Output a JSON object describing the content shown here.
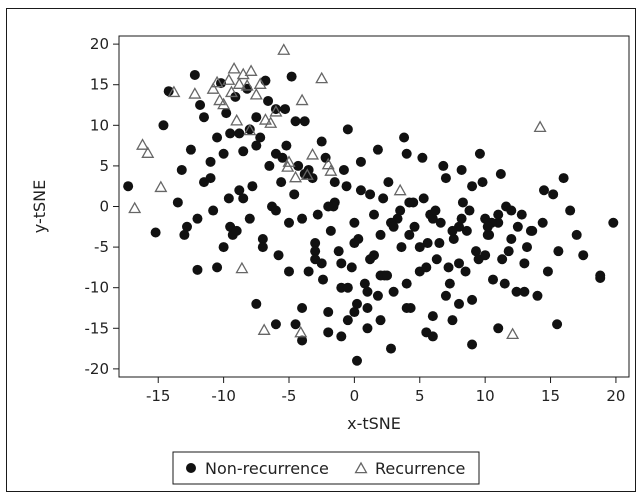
{
  "chart_data": {
    "type": "scatter",
    "title": "",
    "xlabel": "x-tSNE",
    "ylabel": "y-tSNE",
    "xlim": [
      -18,
      21
    ],
    "ylim": [
      -21,
      21
    ],
    "xticks": [
      -15,
      -10,
      -5,
      0,
      5,
      10,
      15,
      20
    ],
    "yticks": [
      -20,
      -15,
      -10,
      -5,
      0,
      5,
      10,
      15,
      20
    ],
    "x_tick_labels": [
      "-15",
      "-10",
      "-5",
      "0",
      "5",
      "10",
      "15",
      "20"
    ],
    "y_tick_labels": [
      "-20",
      "-15",
      "-10",
      "-5",
      "0",
      "5",
      "10",
      "15",
      "20"
    ],
    "grid": false,
    "legend_position": "bottom",
    "series": [
      {
        "name": "Non-recurrence",
        "marker": "filled-circle",
        "color": "#111111",
        "x": [
          -17.3,
          -15.2,
          -14.2,
          -14.6,
          -13.5,
          -13.2,
          -12.8,
          -12.5,
          -12.2,
          -12.0,
          -11.8,
          -11.5,
          -11.0,
          -10.8,
          -10.5,
          -10.2,
          -10.0,
          -9.8,
          -9.6,
          -9.3,
          -9.1,
          -8.8,
          -8.5,
          -8.2,
          -8.0,
          -7.8,
          -7.5,
          -7.2,
          -7.0,
          -6.8,
          -6.6,
          -6.3,
          -6.0,
          -5.8,
          -5.6,
          -5.3,
          -5.0,
          -4.8,
          -4.6,
          -4.3,
          -4.0,
          -3.8,
          -3.5,
          -3.2,
          -3.0,
          -2.8,
          -2.5,
          -2.2,
          -2.0,
          -1.8,
          -1.5,
          -1.2,
          -1.0,
          -0.8,
          -0.5,
          -0.2,
          0.0,
          0.2,
          0.5,
          0.8,
          1.0,
          1.2,
          1.5,
          1.8,
          2.0,
          2.3,
          2.6,
          3.0,
          3.3,
          3.6,
          4.0,
          4.3,
          4.6,
          5.0,
          5.3,
          5.6,
          6.0,
          6.3,
          6.6,
          7.0,
          7.3,
          7.6,
          8.0,
          8.3,
          8.6,
          9.0,
          9.3,
          9.6,
          10.0,
          10.3,
          10.6,
          11.0,
          11.3,
          11.6,
          12.0,
          12.4,
          12.8,
          13.2,
          13.6,
          14.0,
          14.4,
          14.8,
          15.2,
          15.6,
          16.0,
          16.5,
          17.0,
          17.5,
          18.8,
          19.8,
          -13.0,
          -12.0,
          -11.0,
          -10.5,
          -9.5,
          -8.8,
          -7.5,
          -6.0,
          -5.2,
          -4.5,
          -3.8,
          -3.0,
          -2.4,
          -1.6,
          -0.6,
          0.3,
          1.2,
          2.0,
          2.8,
          3.5,
          4.2,
          5.0,
          5.8,
          6.5,
          7.2,
          8.0,
          8.8,
          9.5,
          10.2,
          11.0,
          11.8,
          12.5,
          13.5,
          14.5,
          -10.0,
          -8.5,
          -6.5,
          -4.0,
          -2.0,
          0.0,
          1.5,
          3.0,
          4.5,
          6.0,
          7.5,
          9.0,
          10.5,
          12.0,
          -9.0,
          -7.0,
          -5.0,
          -3.0,
          -1.0,
          1.0,
          2.5,
          4.0,
          5.5,
          7.0,
          8.5,
          10.0,
          11.5,
          13.0,
          -8.0,
          -6.0,
          -4.5,
          -2.5,
          -0.5,
          1.8,
          3.8,
          5.2,
          6.8,
          8.2,
          9.8,
          11.2,
          -11.5,
          -9.5,
          -7.5,
          -5.5,
          -3.5,
          -1.5,
          0.5,
          2.2,
          4.2,
          6.2,
          8.2,
          10.2,
          -6.0,
          -4.0,
          -2.0,
          0.0,
          2.0,
          4.0,
          6.0,
          8.0,
          0.2,
          -1.0,
          2.8,
          -0.5,
          1.0,
          5.5,
          7.5,
          9.0,
          11.0,
          13.0,
          15.5,
          18.8
        ],
        "y": [
          2.5,
          -3.2,
          14.2,
          10.0,
          0.5,
          4.5,
          -2.5,
          7.0,
          16.2,
          -7.8,
          12.5,
          3.0,
          5.5,
          -0.5,
          8.5,
          15.2,
          -5.0,
          11.5,
          1.0,
          -3.5,
          13.5,
          9.0,
          6.8,
          14.5,
          -1.5,
          2.5,
          11.0,
          8.5,
          -4.0,
          15.5,
          13.0,
          0.0,
          6.5,
          -6.0,
          3.0,
          12.0,
          -2.0,
          16.0,
          1.5,
          5.0,
          -12.5,
          10.5,
          -8.0,
          3.5,
          -4.5,
          -1.0,
          -7.0,
          6.0,
          -13.0,
          -3.0,
          0.5,
          -5.5,
          -10.0,
          4.5,
          -14.0,
          -7.5,
          -2.0,
          -12.0,
          5.5,
          -9.5,
          -15.0,
          1.5,
          -6.0,
          -11.0,
          -3.5,
          -8.5,
          3.0,
          -10.5,
          -1.5,
          -5.0,
          6.5,
          -12.5,
          -2.5,
          -8.0,
          1.0,
          -4.5,
          -16.0,
          -6.5,
          -2.0,
          3.5,
          -9.5,
          -4.0,
          -7.0,
          0.5,
          -3.0,
          -11.5,
          -5.5,
          6.5,
          -1.5,
          -3.5,
          -9.0,
          -2.0,
          -6.5,
          0.0,
          -4.0,
          -10.5,
          -1.0,
          -5.0,
          -3.0,
          -11.0,
          -2.0,
          -8.0,
          1.5,
          -5.5,
          3.5,
          -0.5,
          -3.5,
          -6.0,
          -8.5,
          -2.0,
          -3.5,
          -1.5,
          3.5,
          -7.5,
          -2.5,
          2.0,
          -12.0,
          -0.5,
          7.5,
          -14.5,
          4.0,
          -5.5,
          -9.0,
          0.0,
          2.5,
          -4.0,
          -6.5,
          -8.5,
          -2.0,
          -0.5,
          -3.5,
          -5.0,
          -1.0,
          -4.5,
          -7.5,
          -2.5,
          -0.5,
          -6.5,
          -3.5,
          -1.0,
          -5.5,
          -2.5,
          -3.0,
          2.0,
          6.5,
          1.0,
          5.0,
          -1.5,
          0.0,
          -4.5,
          -1.0,
          -2.5,
          0.5,
          -1.5,
          -3.0,
          2.5,
          -2.0,
          -0.5,
          -3.0,
          -5.0,
          -8.0,
          -6.5,
          -7.0,
          -10.5,
          -8.5,
          -9.5,
          -7.5,
          -11.0,
          -8.0,
          -6.0,
          -9.5,
          -7.0,
          9.5,
          12.0,
          10.5,
          8.0,
          9.5,
          7.0,
          8.5,
          6.0,
          5.0,
          4.5,
          3.0,
          4.0,
          11.0,
          9.0,
          7.5,
          6.0,
          4.5,
          3.0,
          2.0,
          1.0,
          0.5,
          -0.5,
          -1.5,
          -2.5,
          -14.5,
          -16.5,
          -15.5,
          -13.0,
          -14.0,
          -12.5,
          -13.5,
          -12.0,
          -19.0,
          -16.0,
          -17.5,
          -10.0,
          -12.5,
          -15.5,
          -14.0,
          -17.0,
          -15.0,
          -10.5,
          -14.5,
          -8.8
        ]
      },
      {
        "name": "Recurrence",
        "marker": "open-triangle",
        "color": "#666666",
        "x": [
          -16.2,
          -15.8,
          -16.8,
          -14.8,
          -13.8,
          -12.2,
          -10.5,
          -10.0,
          -9.6,
          -9.2,
          -8.8,
          -8.5,
          -8.2,
          -7.9,
          -7.5,
          -7.2,
          -6.8,
          -6.4,
          -6.0,
          -5.4,
          -5.1,
          -5.0,
          -4.5,
          -4.0,
          -3.6,
          -3.2,
          -2.5,
          -2.0,
          -1.8,
          -8.6,
          -6.9,
          -4.1,
          3.5,
          12.1,
          14.2,
          -9.4,
          -10.3,
          -8.0,
          -9.0,
          -10.8
        ],
        "y": [
          7.5,
          6.5,
          -0.3,
          2.3,
          14.0,
          13.8,
          15.2,
          12.5,
          15.5,
          16.9,
          15.0,
          16.2,
          14.8,
          16.6,
          13.7,
          15.0,
          10.6,
          10.2,
          11.6,
          19.2,
          4.8,
          5.4,
          3.5,
          13.0,
          3.8,
          6.3,
          15.7,
          5.1,
          4.3,
          -7.7,
          -15.3,
          -15.6,
          1.9,
          -15.8,
          9.7,
          14.0,
          13.0,
          9.3,
          10.5,
          14.4
        ]
      }
    ]
  }
}
